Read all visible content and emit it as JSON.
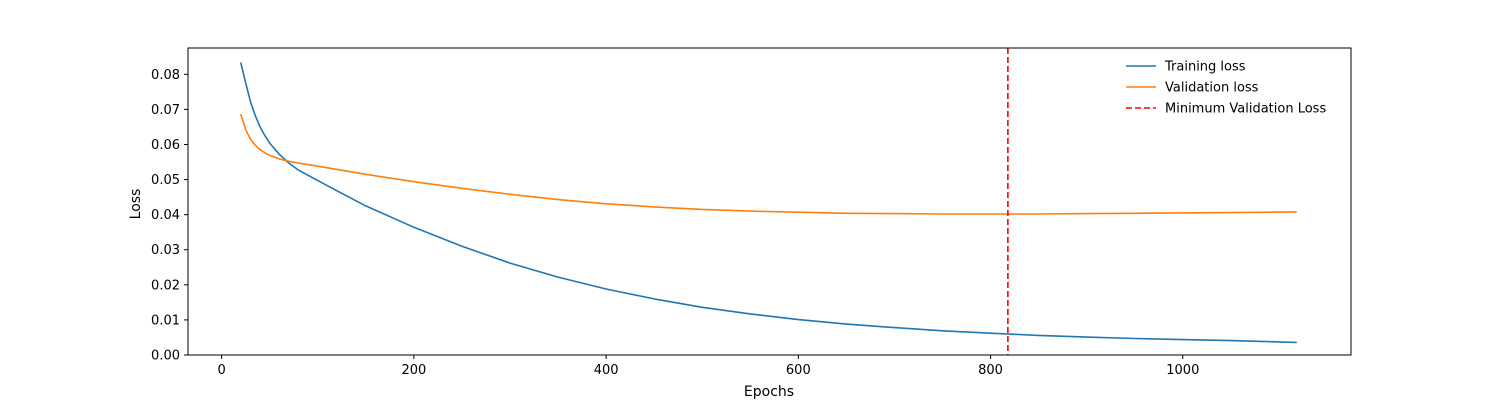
{
  "chart_data": {
    "type": "line",
    "title": "",
    "xlabel": "Epochs",
    "ylabel": "Loss",
    "xlim": [
      -35,
      1175
    ],
    "ylim": [
      0.0,
      0.0875
    ],
    "xticks": [
      0,
      200,
      400,
      600,
      800,
      1000
    ],
    "xtick_labels": [
      "0",
      "200",
      "400",
      "600",
      "800",
      "1000"
    ],
    "yticks": [
      0.0,
      0.01,
      0.02,
      0.03,
      0.04,
      0.05,
      0.06,
      0.07,
      0.08
    ],
    "ytick_labels": [
      "0.00",
      "0.01",
      "0.02",
      "0.03",
      "0.04",
      "0.05",
      "0.06",
      "0.07",
      "0.08"
    ],
    "grid": false,
    "legend_position": "top-right",
    "series": [
      {
        "name": "Training loss",
        "color": "#1f77b4",
        "style": "solid",
        "x": [
          20,
          25,
          30,
          35,
          40,
          45,
          50,
          60,
          70,
          80,
          100,
          120,
          150,
          200,
          250,
          300,
          350,
          400,
          450,
          500,
          550,
          600,
          650,
          700,
          750,
          800,
          850,
          900,
          950,
          1000,
          1050,
          1118
        ],
        "y": [
          0.0832,
          0.0775,
          0.0722,
          0.0682,
          0.065,
          0.0625,
          0.0604,
          0.0572,
          0.0547,
          0.0527,
          0.0497,
          0.0468,
          0.0425,
          0.0364,
          0.031,
          0.0262,
          0.0222,
          0.0188,
          0.016,
          0.0136,
          0.0117,
          0.0101,
          0.0088,
          0.0078,
          0.0069,
          0.0062,
          0.0056,
          0.0051,
          0.0047,
          0.0044,
          0.0041,
          0.0036
        ]
      },
      {
        "name": "Validation loss",
        "color": "#ff7f0e",
        "style": "solid",
        "x": [
          20,
          25,
          30,
          35,
          40,
          45,
          50,
          60,
          70,
          80,
          100,
          150,
          200,
          250,
          300,
          350,
          400,
          450,
          500,
          550,
          600,
          650,
          700,
          750,
          800,
          850,
          900,
          950,
          1000,
          1050,
          1118
        ],
        "y": [
          0.0685,
          0.0642,
          0.0615,
          0.0598,
          0.0585,
          0.0576,
          0.0569,
          0.0559,
          0.0552,
          0.0547,
          0.0538,
          0.0515,
          0.0494,
          0.0475,
          0.0458,
          0.0443,
          0.0431,
          0.0422,
          0.0415,
          0.041,
          0.0407,
          0.0404,
          0.0403,
          0.0402,
          0.0402,
          0.0402,
          0.0403,
          0.0404,
          0.0405,
          0.0406,
          0.0408
        ]
      }
    ],
    "vlines": [
      {
        "name": "Minimum Validation Loss",
        "x": 818,
        "color": "#ff0000",
        "style": "dashed"
      }
    ]
  }
}
